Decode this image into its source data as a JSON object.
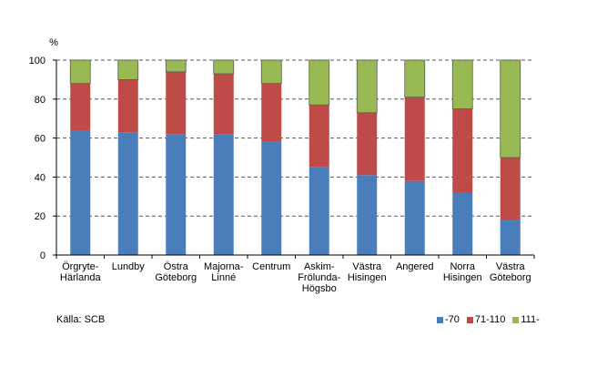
{
  "chart_data": {
    "type": "bar",
    "stacked": true,
    "percent_stacked": true,
    "ylabel": "%",
    "ylim": [
      0,
      100
    ],
    "yticks": [
      "0",
      "20",
      "40",
      "60",
      "80",
      "100"
    ],
    "grid": "horizontal dashed",
    "legend_position": "bottom-right",
    "categories": [
      [
        "Örgryte-",
        "Härlanda"
      ],
      [
        "Lundby"
      ],
      [
        "Östra",
        "Göteborg"
      ],
      [
        "Majorna-",
        "Linné"
      ],
      [
        "Centrum"
      ],
      [
        "Askim-",
        "Frölunda-",
        "Högsbo"
      ],
      [
        "Västra",
        "Hisingen"
      ],
      [
        "Angered"
      ],
      [
        "Norra",
        "Hisingen"
      ],
      [
        "Västra",
        "Göteborg"
      ]
    ],
    "series": [
      {
        "name": "-70",
        "color": "#4a7ebb",
        "values": [
          64,
          63,
          62,
          62,
          58,
          45,
          41,
          38,
          32,
          18
        ]
      },
      {
        "name": "71-110",
        "color": "#be4b48",
        "values": [
          24,
          27,
          32,
          31,
          30,
          32,
          32,
          43,
          43,
          32
        ]
      },
      {
        "name": "111-",
        "color": "#98b954",
        "values": [
          12,
          10,
          6,
          7,
          12,
          23,
          27,
          19,
          25,
          50
        ]
      }
    ]
  },
  "source": "Källa:  SCB"
}
